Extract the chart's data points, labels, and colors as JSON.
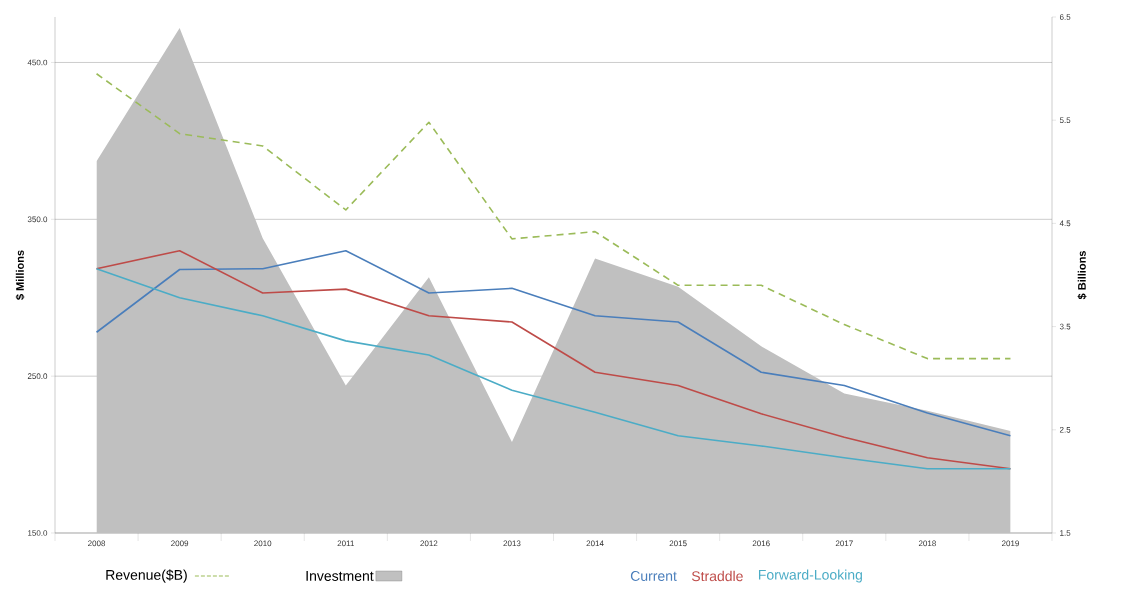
{
  "chart_data": {
    "type": "line",
    "categories": [
      "2008",
      "2009",
      "2010",
      "2011",
      "2012",
      "2013",
      "2014",
      "2015",
      "2016",
      "2017",
      "2018",
      "2019"
    ],
    "ylabel": "$ Millions",
    "y2label": "$ Billions",
    "ylim": [
      150,
      479
    ],
    "yticks": [
      {
        "value": 150,
        "label": "150.0"
      },
      {
        "value": 250,
        "label": "250.0"
      },
      {
        "value": 350,
        "label": "350.0"
      },
      {
        "value": 450,
        "label": "450.0"
      }
    ],
    "y2lim": [
      1.5,
      6.5
    ],
    "y2ticks": [
      1.5,
      2.5,
      3.5,
      4.5,
      5.5,
      6.5
    ],
    "grid": "y",
    "legend": "bottom",
    "series": [
      {
        "name": "Investment",
        "type": "area",
        "color": "#c0c0c0",
        "values": [
          387,
          472,
          338,
          244,
          313,
          208,
          325,
          307,
          269,
          239,
          228,
          215
        ]
      },
      {
        "name": "Current",
        "color": "#4a7ebb",
        "values": [
          278,
          318,
          318.5,
          330,
          303,
          306,
          288.5,
          284.5,
          252.5,
          244,
          226.5,
          212
        ]
      },
      {
        "name": "Straddle",
        "color": "#be4b48",
        "values": [
          318.5,
          330,
          303,
          305.5,
          288.5,
          284.5,
          252.5,
          244,
          226,
          211,
          198,
          191
        ]
      },
      {
        "name": "Forward-Looking",
        "color": "#4bacc6",
        "values": [
          318.5,
          300,
          288.5,
          272.5,
          263.5,
          241,
          227,
          212,
          205.5,
          198,
          191,
          191
        ]
      },
      {
        "name": "Revenue($B)",
        "color": "#9bbb59",
        "axis": "y2",
        "line_style": "dashed",
        "values": [
          5.95,
          5.37,
          5.25,
          4.63,
          5.48,
          4.35,
          4.42,
          3.9,
          3.9,
          3.52,
          3.19,
          3.19
        ]
      }
    ]
  }
}
